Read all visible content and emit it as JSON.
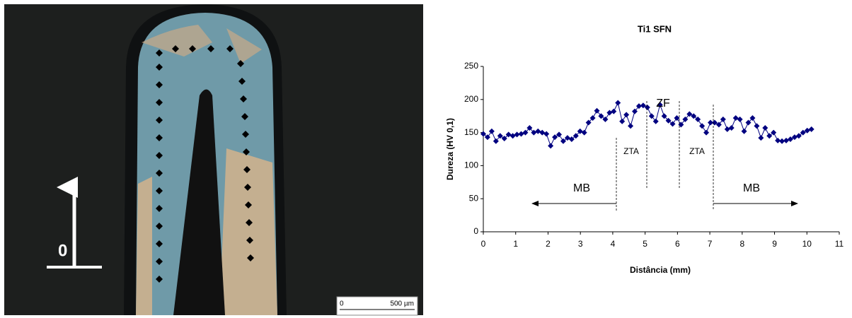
{
  "image": {
    "arrow_label": "0",
    "scale_start": "0",
    "scale_end": "500 µm"
  },
  "chart_data": {
    "type": "line",
    "title": "Ti1 SFN",
    "x_label": "Distância (mm)",
    "y_label": "Dureza (HV 0,1)",
    "x": [
      0,
      0.13,
      0.26,
      0.39,
      0.52,
      0.65,
      0.78,
      0.91,
      1.04,
      1.17,
      1.3,
      1.43,
      1.56,
      1.69,
      1.82,
      1.95,
      2.08,
      2.21,
      2.34,
      2.47,
      2.6,
      2.73,
      2.86,
      2.99,
      3.12,
      3.25,
      3.38,
      3.51,
      3.64,
      3.77,
      3.9,
      4.03,
      4.16,
      4.29,
      4.42,
      4.55,
      4.68,
      4.81,
      4.94,
      5.07,
      5.2,
      5.33,
      5.46,
      5.59,
      5.72,
      5.85,
      5.98,
      6.11,
      6.24,
      6.37,
      6.5,
      6.63,
      6.76,
      6.89,
      7.02,
      7.15,
      7.28,
      7.41,
      7.54,
      7.67,
      7.8,
      7.93,
      8.06,
      8.19,
      8.32,
      8.45,
      8.58,
      8.71,
      8.84,
      8.97,
      9.1,
      9.23,
      9.36,
      9.49,
      9.62,
      9.75,
      9.88,
      10.01,
      10.14
    ],
    "values": [
      148,
      143,
      152,
      137,
      145,
      141,
      147,
      145,
      147,
      148,
      150,
      157,
      150,
      152,
      150,
      148,
      130,
      143,
      147,
      137,
      142,
      140,
      145,
      152,
      150,
      165,
      172,
      183,
      175,
      170,
      180,
      182,
      195,
      167,
      177,
      160,
      182,
      190,
      191,
      188,
      175,
      167,
      192,
      175,
      168,
      163,
      172,
      162,
      170,
      178,
      175,
      170,
      160,
      150,
      165,
      165,
      162,
      170,
      155,
      157,
      172,
      170,
      152,
      165,
      172,
      160,
      142,
      157,
      145,
      150,
      138,
      137,
      138,
      140,
      143,
      145,
      150,
      153,
      155
    ],
    "color": "#000080",
    "xlim": [
      0,
      11
    ],
    "xticks": [
      0,
      1,
      2,
      3,
      4,
      5,
      6,
      7,
      8,
      9,
      10,
      11
    ],
    "ylim": [
      0,
      250
    ],
    "yticks": [
      0,
      50,
      100,
      150,
      200,
      250
    ],
    "annotations": [
      "ZF",
      "ZTA",
      "ZTA",
      "MB",
      "MB"
    ]
  }
}
